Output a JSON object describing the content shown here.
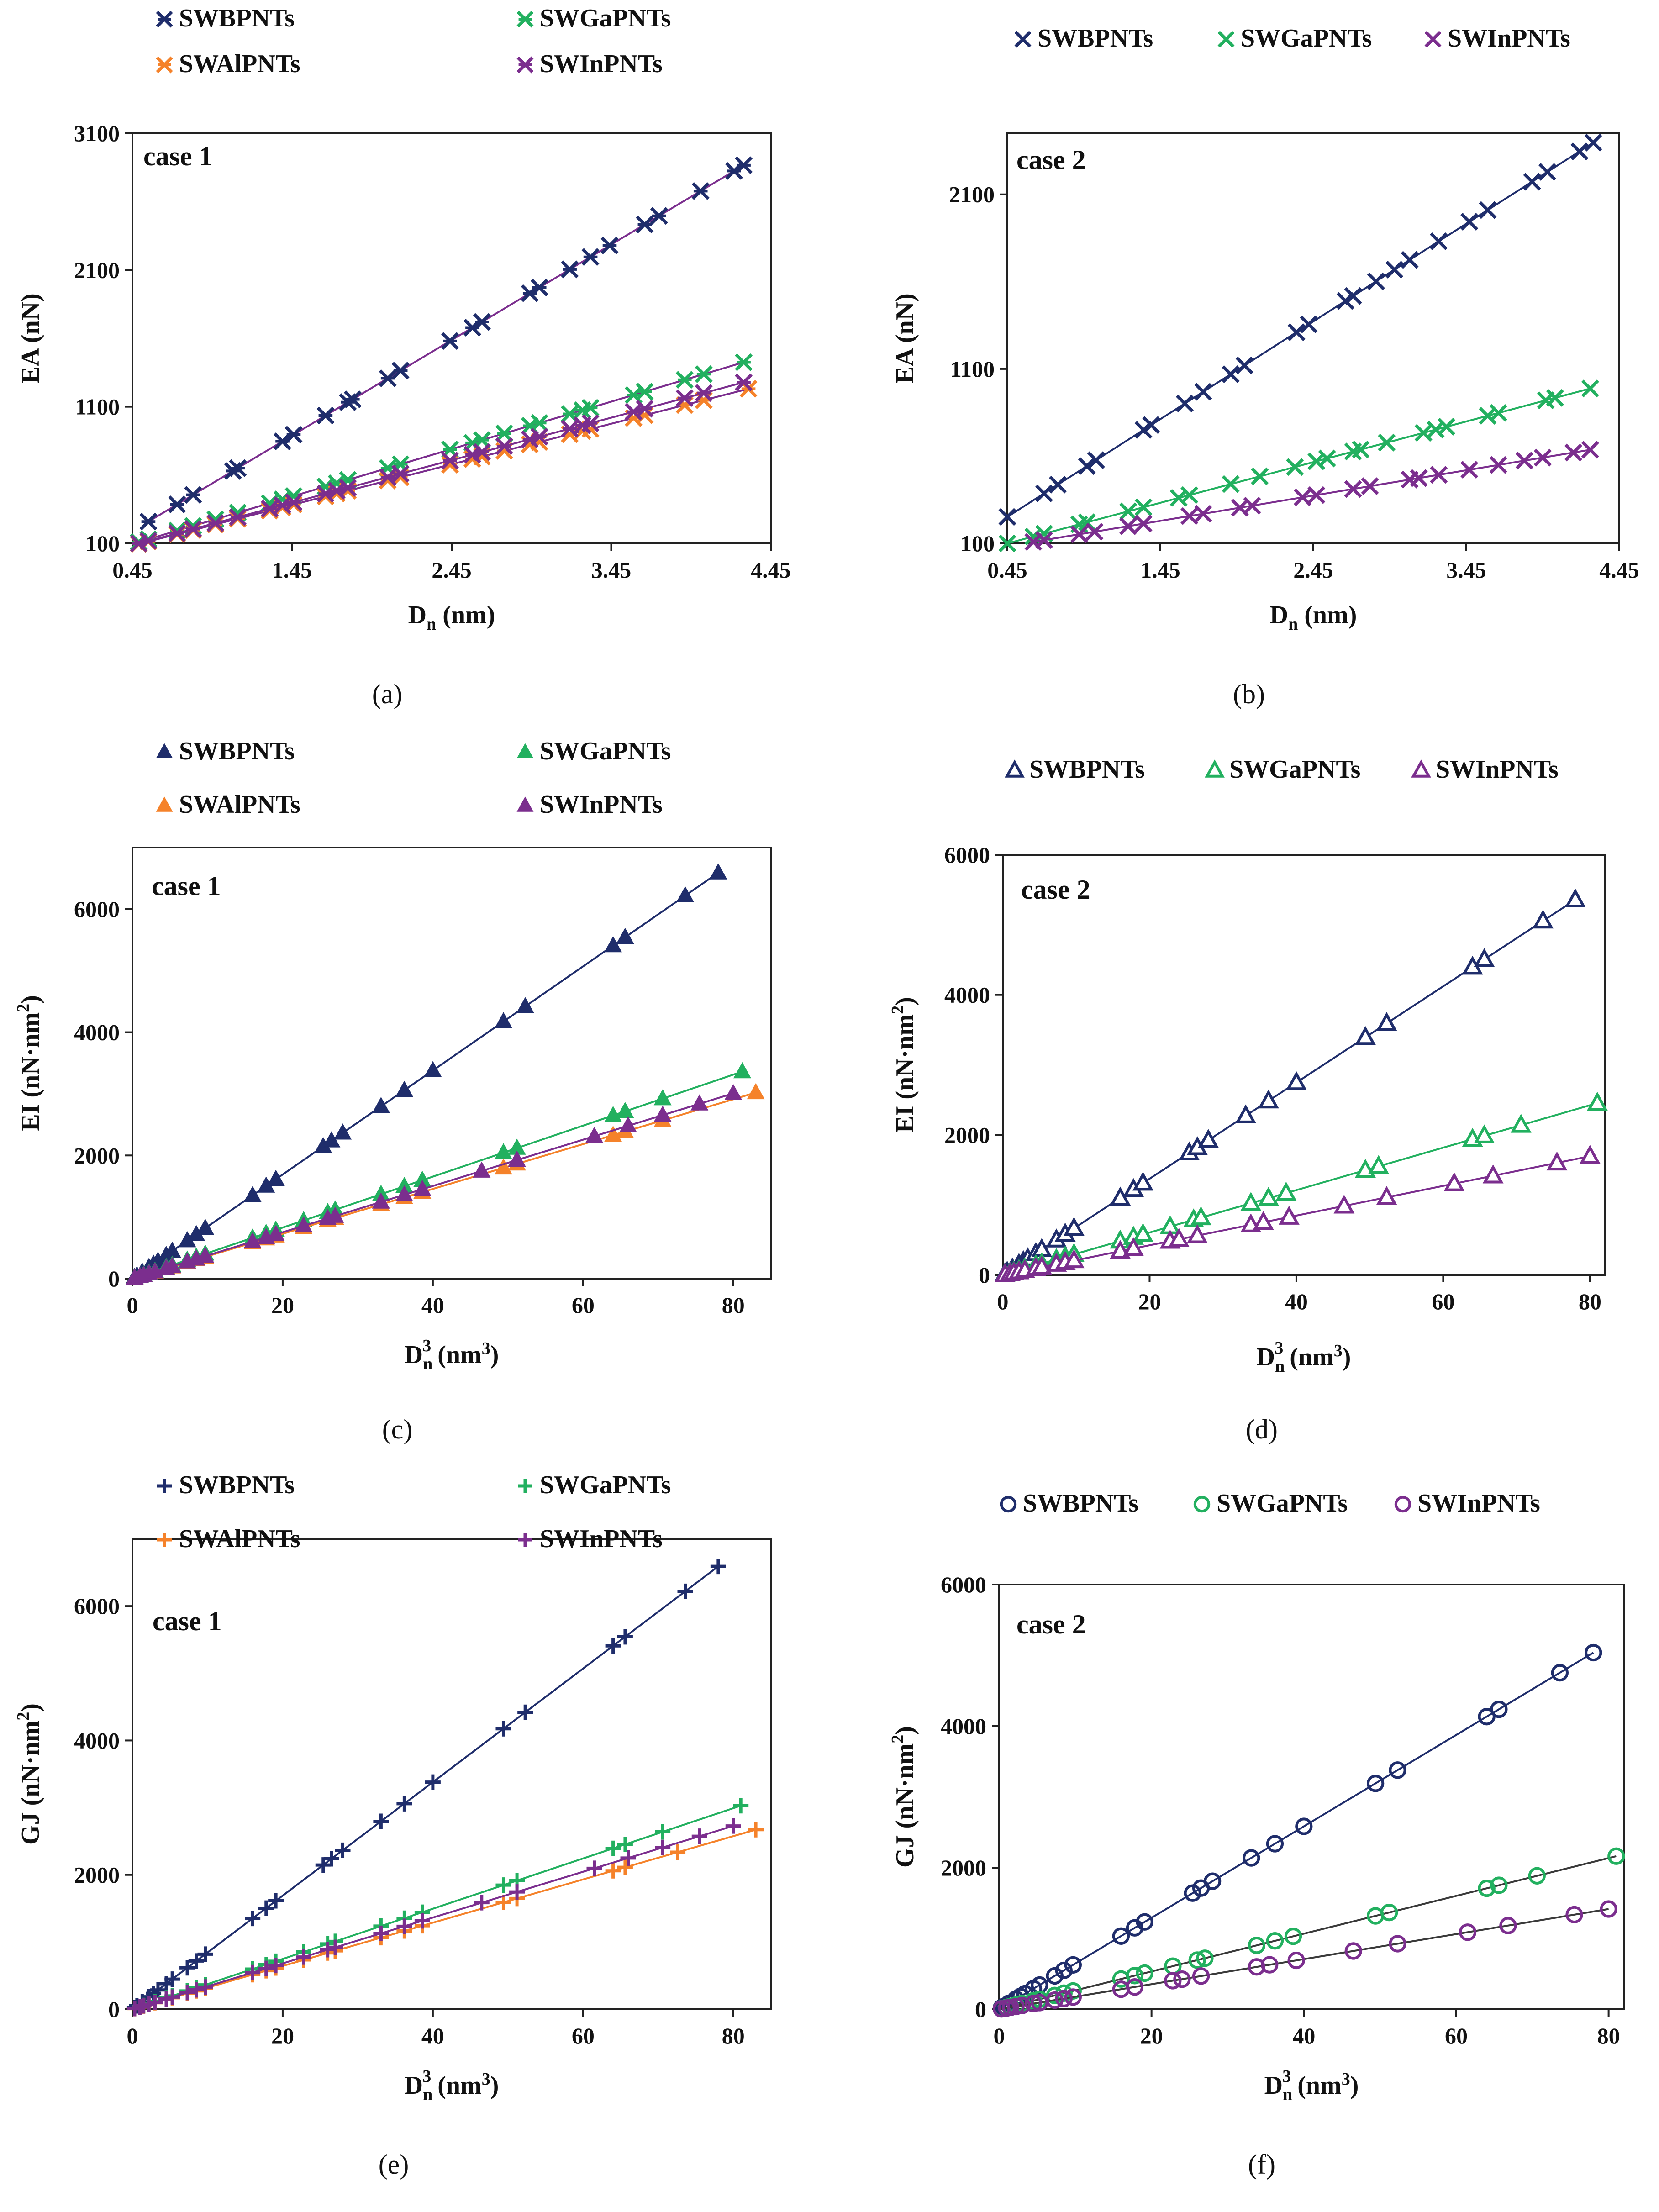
{
  "colors": {
    "B": "#1f2d6b",
    "Ga": "#22b05f",
    "Al": "#f5822a",
    "In": "#7b2e8e",
    "fit": "#3a3a3a",
    "axis": "#222222",
    "text": "#111111"
  },
  "chart_data": [
    {
      "id": "a",
      "panel_label": "(a)",
      "type": "scatter",
      "case_label": "case 1",
      "marker": "star",
      "xlabel": "Dn (nm)",
      "xlabel_main": "D",
      "xlabel_sub": "n",
      "xlabel_rest": " (nm)",
      "ylabel": "EA (nN)",
      "xlim": [
        0.45,
        4.45
      ],
      "ylim": [
        100,
        3100
      ],
      "xticks": [
        0.45,
        1.45,
        2.45,
        3.45,
        4.45
      ],
      "xtick_labels": [
        "0.45",
        "1.45",
        "2.45",
        "3.45",
        "4.45"
      ],
      "yticks": [
        100,
        1100,
        2100,
        3100
      ],
      "ytick_labels": [
        "100",
        "1100",
        "2100",
        "3100"
      ],
      "legend": [
        "SWBPNTs",
        "SWGaPNTs",
        "SWAlPNTs",
        "SWInPNTs"
      ],
      "series": [
        {
          "name": "SWBPNTs",
          "key": "B",
          "slope": 699,
          "intercept": -125,
          "x": [
            0.55,
            0.73,
            0.83,
            1.08,
            1.11,
            1.39,
            1.46,
            1.66,
            1.8,
            1.83,
            2.05,
            2.13,
            2.44,
            2.58,
            2.64,
            2.94,
            3.0,
            3.19,
            3.32,
            3.44,
            3.66,
            3.75,
            4.01,
            4.22,
            4.28
          ]
        },
        {
          "name": "SWGaPNTs",
          "key": "Ga",
          "slope": 347,
          "intercept": -60,
          "x": [
            0.49,
            0.55,
            0.73,
            0.83,
            0.97,
            1.11,
            1.31,
            1.39,
            1.46,
            1.66,
            1.73,
            1.8,
            2.05,
            2.13,
            2.44,
            2.58,
            2.64,
            2.78,
            2.94,
            3.0,
            3.19,
            3.27,
            3.32,
            3.59,
            3.66,
            3.91,
            4.03,
            4.28
          ]
        },
        {
          "name": "SWAlPNTs",
          "key": "Al",
          "slope": 297,
          "intercept": -49,
          "x": [
            0.49,
            0.55,
            0.73,
            0.83,
            0.97,
            1.11,
            1.31,
            1.39,
            1.46,
            1.66,
            1.73,
            1.8,
            2.05,
            2.13,
            2.44,
            2.58,
            2.64,
            2.78,
            2.94,
            3.0,
            3.19,
            3.27,
            3.32,
            3.59,
            3.66,
            3.91,
            4.03,
            4.31
          ]
        },
        {
          "name": "SWInPNTs",
          "key": "In",
          "slope": 311,
          "intercept": -53,
          "x": [
            0.49,
            0.55,
            0.73,
            0.83,
            0.97,
            1.11,
            1.31,
            1.39,
            1.46,
            1.66,
            1.73,
            1.8,
            2.05,
            2.13,
            2.44,
            2.58,
            2.64,
            2.78,
            2.94,
            3.0,
            3.19,
            3.27,
            3.32,
            3.59,
            3.66,
            3.91,
            4.03,
            4.28
          ]
        }
      ]
    },
    {
      "id": "b",
      "panel_label": "(b)",
      "type": "scatter",
      "case_label": "case 2",
      "marker": "x",
      "xlabel": "Dn (nm)",
      "xlabel_main": "D",
      "xlabel_sub": "n",
      "xlabel_rest": " (nm)",
      "ylabel": "EA (nN)",
      "xlim": [
        0.45,
        4.45
      ],
      "ylim": [
        100,
        2450
      ],
      "xticks": [
        0.45,
        1.45,
        2.45,
        3.45,
        4.45
      ],
      "xtick_labels": [
        "0.45",
        "1.45",
        "2.45",
        "3.45",
        "4.45"
      ],
      "yticks": [
        100,
        1100,
        2100
      ],
      "ytick_labels": [
        "100",
        "1100",
        "2100"
      ],
      "legend": [
        "SWBPNTs",
        "SWGaPNTs",
        "SWInPNTs"
      ],
      "series": [
        {
          "name": "SWBPNTs",
          "key": "B",
          "slope": 560,
          "intercept": 0,
          "x": [
            0.45,
            0.69,
            0.78,
            0.97,
            1.03,
            1.34,
            1.39,
            1.61,
            1.73,
            1.91,
            2.0,
            2.34,
            2.42,
            2.66,
            2.71,
            2.86,
            2.98,
            3.08,
            3.27,
            3.47,
            3.59,
            3.88,
            3.98,
            4.19,
            4.28
          ]
        },
        {
          "name": "SWGaPNTs",
          "key": "Ga",
          "slope": 233,
          "intercept": -5,
          "x": [
            0.45,
            0.62,
            0.69,
            0.92,
            0.97,
            1.24,
            1.34,
            1.57,
            1.64,
            1.91,
            2.1,
            2.33,
            2.47,
            2.54,
            2.71,
            2.76,
            2.93,
            3.17,
            3.25,
            3.32,
            3.59,
            3.66,
            3.97,
            4.03,
            4.26
          ]
        },
        {
          "name": "SWInPNTs",
          "key": "In",
          "slope": 145,
          "intercept": 19,
          "x": [
            0.62,
            0.69,
            0.92,
            1.02,
            1.24,
            1.34,
            1.64,
            1.73,
            1.97,
            2.05,
            2.38,
            2.47,
            2.71,
            2.82,
            3.08,
            3.14,
            3.27,
            3.47,
            3.66,
            3.83,
            3.95,
            4.15,
            4.26
          ]
        }
      ]
    },
    {
      "id": "c",
      "panel_label": "(c)",
      "type": "scatter",
      "case_label": "case 1",
      "marker": "triangle",
      "xlabel": "Dn3 (nm3)",
      "xlabel_main": "D",
      "xlabel_sub": "n",
      "xlabel_sup": "3",
      "xlabel_rest": " (nm",
      "ylabel": "EI (nN·nm2)",
      "ylabel_main": "EI (nN·nm",
      "ylabel_sup": "2",
      "xlim": [
        0,
        85
      ],
      "ylim": [
        0,
        7000
      ],
      "xticks": [
        0,
        20,
        40,
        60,
        80
      ],
      "xtick_labels": [
        "0",
        "20",
        "40",
        "60",
        "80"
      ],
      "yticks": [
        0,
        2000,
        4000,
        6000
      ],
      "ytick_labels": [
        "0",
        "2000",
        "4000",
        "6000"
      ],
      "legend": [
        "SWBPNTs",
        "SWGaPNTs",
        "SWAlPNTs",
        "SWInPNTs"
      ],
      "series": [
        {
          "name": "SWBPNTs",
          "key": "B",
          "slope": 84.5,
          "intercept": 0,
          "x": [
            0.3,
            0.6,
            1.3,
            2.2,
            2.8,
            3.4,
            4.5,
            5.3,
            7.3,
            8.5,
            9.7,
            16.0,
            17.8,
            19.1,
            25.4,
            26.5,
            28.0,
            33.1,
            36.2,
            40.0,
            49.4,
            52.3,
            64.0,
            65.6,
            73.6,
            78.0
          ]
        },
        {
          "name": "SWGaPNTs",
          "key": "Ga",
          "slope": 41.4,
          "intercept": 0,
          "x": [
            0.3,
            1.0,
            1.5,
            2.2,
            3.0,
            4.5,
            5.3,
            7.3,
            8.5,
            9.7,
            16.0,
            17.8,
            19.1,
            22.8,
            26.0,
            27.0,
            33.1,
            36.2,
            38.6,
            49.4,
            51.2,
            64.0,
            65.6,
            70.6,
            81.2
          ]
        },
        {
          "name": "SWAlPNTs",
          "key": "Al",
          "slope": 36.4,
          "intercept": 0,
          "x": [
            0.3,
            1.0,
            1.5,
            2.2,
            3.0,
            4.5,
            5.3,
            7.3,
            8.5,
            9.7,
            16.0,
            17.8,
            19.1,
            22.8,
            26.0,
            27.0,
            33.1,
            36.2,
            38.6,
            49.4,
            51.2,
            64.0,
            65.6,
            70.6,
            83.0
          ]
        },
        {
          "name": "SWInPNTs",
          "key": "In",
          "slope": 37.6,
          "intercept": 0,
          "x": [
            0.3,
            1.0,
            1.5,
            2.2,
            3.0,
            4.5,
            5.3,
            7.3,
            8.5,
            9.7,
            16.0,
            17.8,
            19.1,
            22.8,
            26.0,
            27.0,
            33.1,
            36.2,
            38.6,
            46.5,
            51.2,
            61.5,
            66.0,
            70.6,
            75.5,
            80.0
          ]
        }
      ]
    },
    {
      "id": "d",
      "panel_label": "(d)",
      "type": "scatter",
      "case_label": "case 2",
      "marker": "triangle-open",
      "xlabel": "Dn3 (nm3)",
      "xlabel_main": "D",
      "xlabel_sub": "n",
      "xlabel_sup": "3",
      "xlabel_rest": " (nm",
      "ylabel": "EI (nN·nm2)",
      "ylabel_main": "EI (nN·nm",
      "ylabel_sup": "2",
      "xlim": [
        0,
        82
      ],
      "ylim": [
        0,
        6000
      ],
      "xticks": [
        0,
        20,
        40,
        60,
        80
      ],
      "xtick_labels": [
        "0",
        "20",
        "40",
        "60",
        "80"
      ],
      "yticks": [
        0,
        2000,
        4000,
        6000
      ],
      "ytick_labels": [
        "0",
        "2000",
        "4000",
        "6000"
      ],
      "legend": [
        "SWBPNTs",
        "SWGaPNTs",
        "SWInPNTs"
      ],
      "series": [
        {
          "name": "SWBPNTs",
          "key": "B",
          "slope": 68.7,
          "intercept": 0,
          "x": [
            0.3,
            0.6,
            1.3,
            2.2,
            2.8,
            3.4,
            4.5,
            5.3,
            7.3,
            8.5,
            9.7,
            16.0,
            17.8,
            19.1,
            25.4,
            26.5,
            28.0,
            33.1,
            36.2,
            40.0,
            49.4,
            52.3,
            64.0,
            65.6,
            73.6,
            78.0
          ]
        },
        {
          "name": "SWGaPNTs",
          "key": "Ga",
          "slope": 30.3,
          "intercept": 0,
          "x": [
            0.3,
            1.0,
            1.5,
            2.2,
            3.0,
            4.5,
            5.3,
            7.3,
            8.5,
            9.7,
            16.0,
            17.8,
            19.1,
            22.8,
            26.0,
            27.0,
            33.8,
            36.2,
            38.6,
            49.4,
            51.2,
            64.0,
            65.6,
            70.6,
            81.0
          ]
        },
        {
          "name": "SWInPNTs",
          "key": "In",
          "slope": 21.2,
          "intercept": 0,
          "x": [
            0.3,
            1.0,
            1.5,
            2.2,
            3.0,
            4.5,
            5.3,
            7.3,
            8.5,
            9.7,
            16.0,
            17.8,
            22.8,
            24.0,
            26.5,
            33.8,
            35.5,
            39.0,
            46.5,
            52.3,
            61.5,
            66.8,
            75.5,
            80.0
          ]
        }
      ]
    },
    {
      "id": "e",
      "panel_label": "(e)",
      "type": "scatter",
      "case_label": "case 1",
      "marker": "plus",
      "xlabel": "Dn3 (nm3)",
      "xlabel_main": "D",
      "xlabel_sub": "n",
      "xlabel_sup": "3",
      "xlabel_rest": " (nm",
      "ylabel": "GJ (nN·nm2)",
      "ylabel_main": "GJ (nN·nm",
      "ylabel_sup": "2",
      "xlim": [
        0,
        85
      ],
      "ylim": [
        0,
        7000
      ],
      "xticks": [
        0,
        20,
        40,
        60,
        80
      ],
      "xtick_labels": [
        "0",
        "20",
        "40",
        "60",
        "80"
      ],
      "yticks": [
        0,
        2000,
        4000,
        6000
      ],
      "ytick_labels": [
        "0",
        "2000",
        "4000",
        "6000"
      ],
      "legend": [
        "SWBPNTs",
        "SWGaPNTs",
        "SWAlPNTs",
        "SWInPNTs"
      ],
      "series": [
        {
          "name": "SWBPNTs",
          "key": "B",
          "slope": 84.5,
          "intercept": 0,
          "x": [
            0.3,
            0.6,
            1.3,
            2.2,
            2.8,
            3.4,
            4.5,
            5.3,
            7.3,
            8.5,
            9.7,
            16.0,
            17.8,
            19.1,
            25.4,
            26.5,
            28.0,
            33.1,
            36.2,
            40.0,
            49.4,
            52.3,
            64.0,
            65.6,
            73.6,
            78.0
          ]
        },
        {
          "name": "SWGaPNTs",
          "key": "Ga",
          "slope": 37.4,
          "intercept": 0,
          "x": [
            0.3,
            1.0,
            1.5,
            2.2,
            3.0,
            4.5,
            5.3,
            7.3,
            8.5,
            9.7,
            16.0,
            17.8,
            19.1,
            22.8,
            26.0,
            27.0,
            33.1,
            36.2,
            38.6,
            49.4,
            51.2,
            64.0,
            65.6,
            70.6,
            81.0
          ]
        },
        {
          "name": "SWAlPNTs",
          "key": "Al",
          "slope": 32.2,
          "intercept": 0,
          "x": [
            0.3,
            1.0,
            1.5,
            2.2,
            3.0,
            4.5,
            5.3,
            7.3,
            8.5,
            9.7,
            16.0,
            17.8,
            19.1,
            22.8,
            26.0,
            27.0,
            33.1,
            36.2,
            38.6,
            49.4,
            51.2,
            64.0,
            65.6,
            72.6,
            83.0
          ]
        },
        {
          "name": "SWInPNTs",
          "key": "In",
          "slope": 34.1,
          "intercept": 0,
          "x": [
            0.3,
            1.0,
            1.5,
            2.2,
            3.0,
            4.5,
            5.3,
            7.3,
            8.5,
            9.7,
            16.0,
            17.8,
            19.1,
            22.8,
            26.0,
            27.0,
            33.1,
            36.2,
            38.6,
            46.5,
            51.2,
            61.5,
            66.0,
            70.6,
            75.5,
            80.0
          ]
        }
      ]
    },
    {
      "id": "f",
      "panel_label": "(f)",
      "type": "scatter",
      "case_label": "case 2",
      "marker": "circle-open",
      "xlabel": "Dn3 (nm3)",
      "xlabel_main": "D",
      "xlabel_sub": "n",
      "xlabel_sup": "3",
      "xlabel_rest": " (nm",
      "ylabel": "GJ (nN·nm2)",
      "ylabel_main": "GJ (nN·nm",
      "ylabel_sup": "2",
      "xlim": [
        0,
        82
      ],
      "ylim": [
        0,
        6000
      ],
      "xticks": [
        0,
        20,
        40,
        60,
        80
      ],
      "xtick_labels": [
        "0",
        "20",
        "40",
        "60",
        "80"
      ],
      "yticks": [
        0,
        2000,
        4000,
        6000
      ],
      "ytick_labels": [
        "0",
        "2000",
        "4000",
        "6000"
      ],
      "legend": [
        "SWBPNTs",
        "SWGaPNTs",
        "SWInPNTs"
      ],
      "series": [
        {
          "name": "SWBPNTs",
          "key": "B",
          "slope": 64.6,
          "intercept": 0,
          "x": [
            0.3,
            0.6,
            1.3,
            2.2,
            2.8,
            3.4,
            4.5,
            5.3,
            7.3,
            8.5,
            9.7,
            16.0,
            17.8,
            19.1,
            25.4,
            26.5,
            28.0,
            33.1,
            36.2,
            40.0,
            49.4,
            52.3,
            64.0,
            65.6,
            73.6,
            78.0
          ]
        },
        {
          "name": "SWGaPNTs",
          "key": "Ga",
          "slope": 26.7,
          "intercept": 0,
          "x": [
            0.3,
            1.0,
            1.5,
            2.2,
            3.0,
            4.5,
            5.3,
            7.3,
            8.5,
            9.7,
            16.0,
            17.8,
            19.1,
            22.8,
            26.0,
            27.0,
            33.8,
            36.2,
            38.6,
            49.4,
            51.2,
            64.0,
            65.6,
            70.6,
            81.0
          ]
        },
        {
          "name": "SWInPNTs",
          "key": "In",
          "slope": 17.7,
          "intercept": 0,
          "x": [
            0.3,
            1.0,
            1.5,
            2.2,
            3.0,
            4.5,
            5.3,
            7.3,
            8.5,
            9.7,
            16.0,
            17.8,
            22.8,
            24.0,
            26.5,
            33.8,
            35.5,
            39.0,
            46.5,
            52.3,
            61.5,
            66.8,
            75.5,
            80.0
          ]
        }
      ]
    }
  ]
}
